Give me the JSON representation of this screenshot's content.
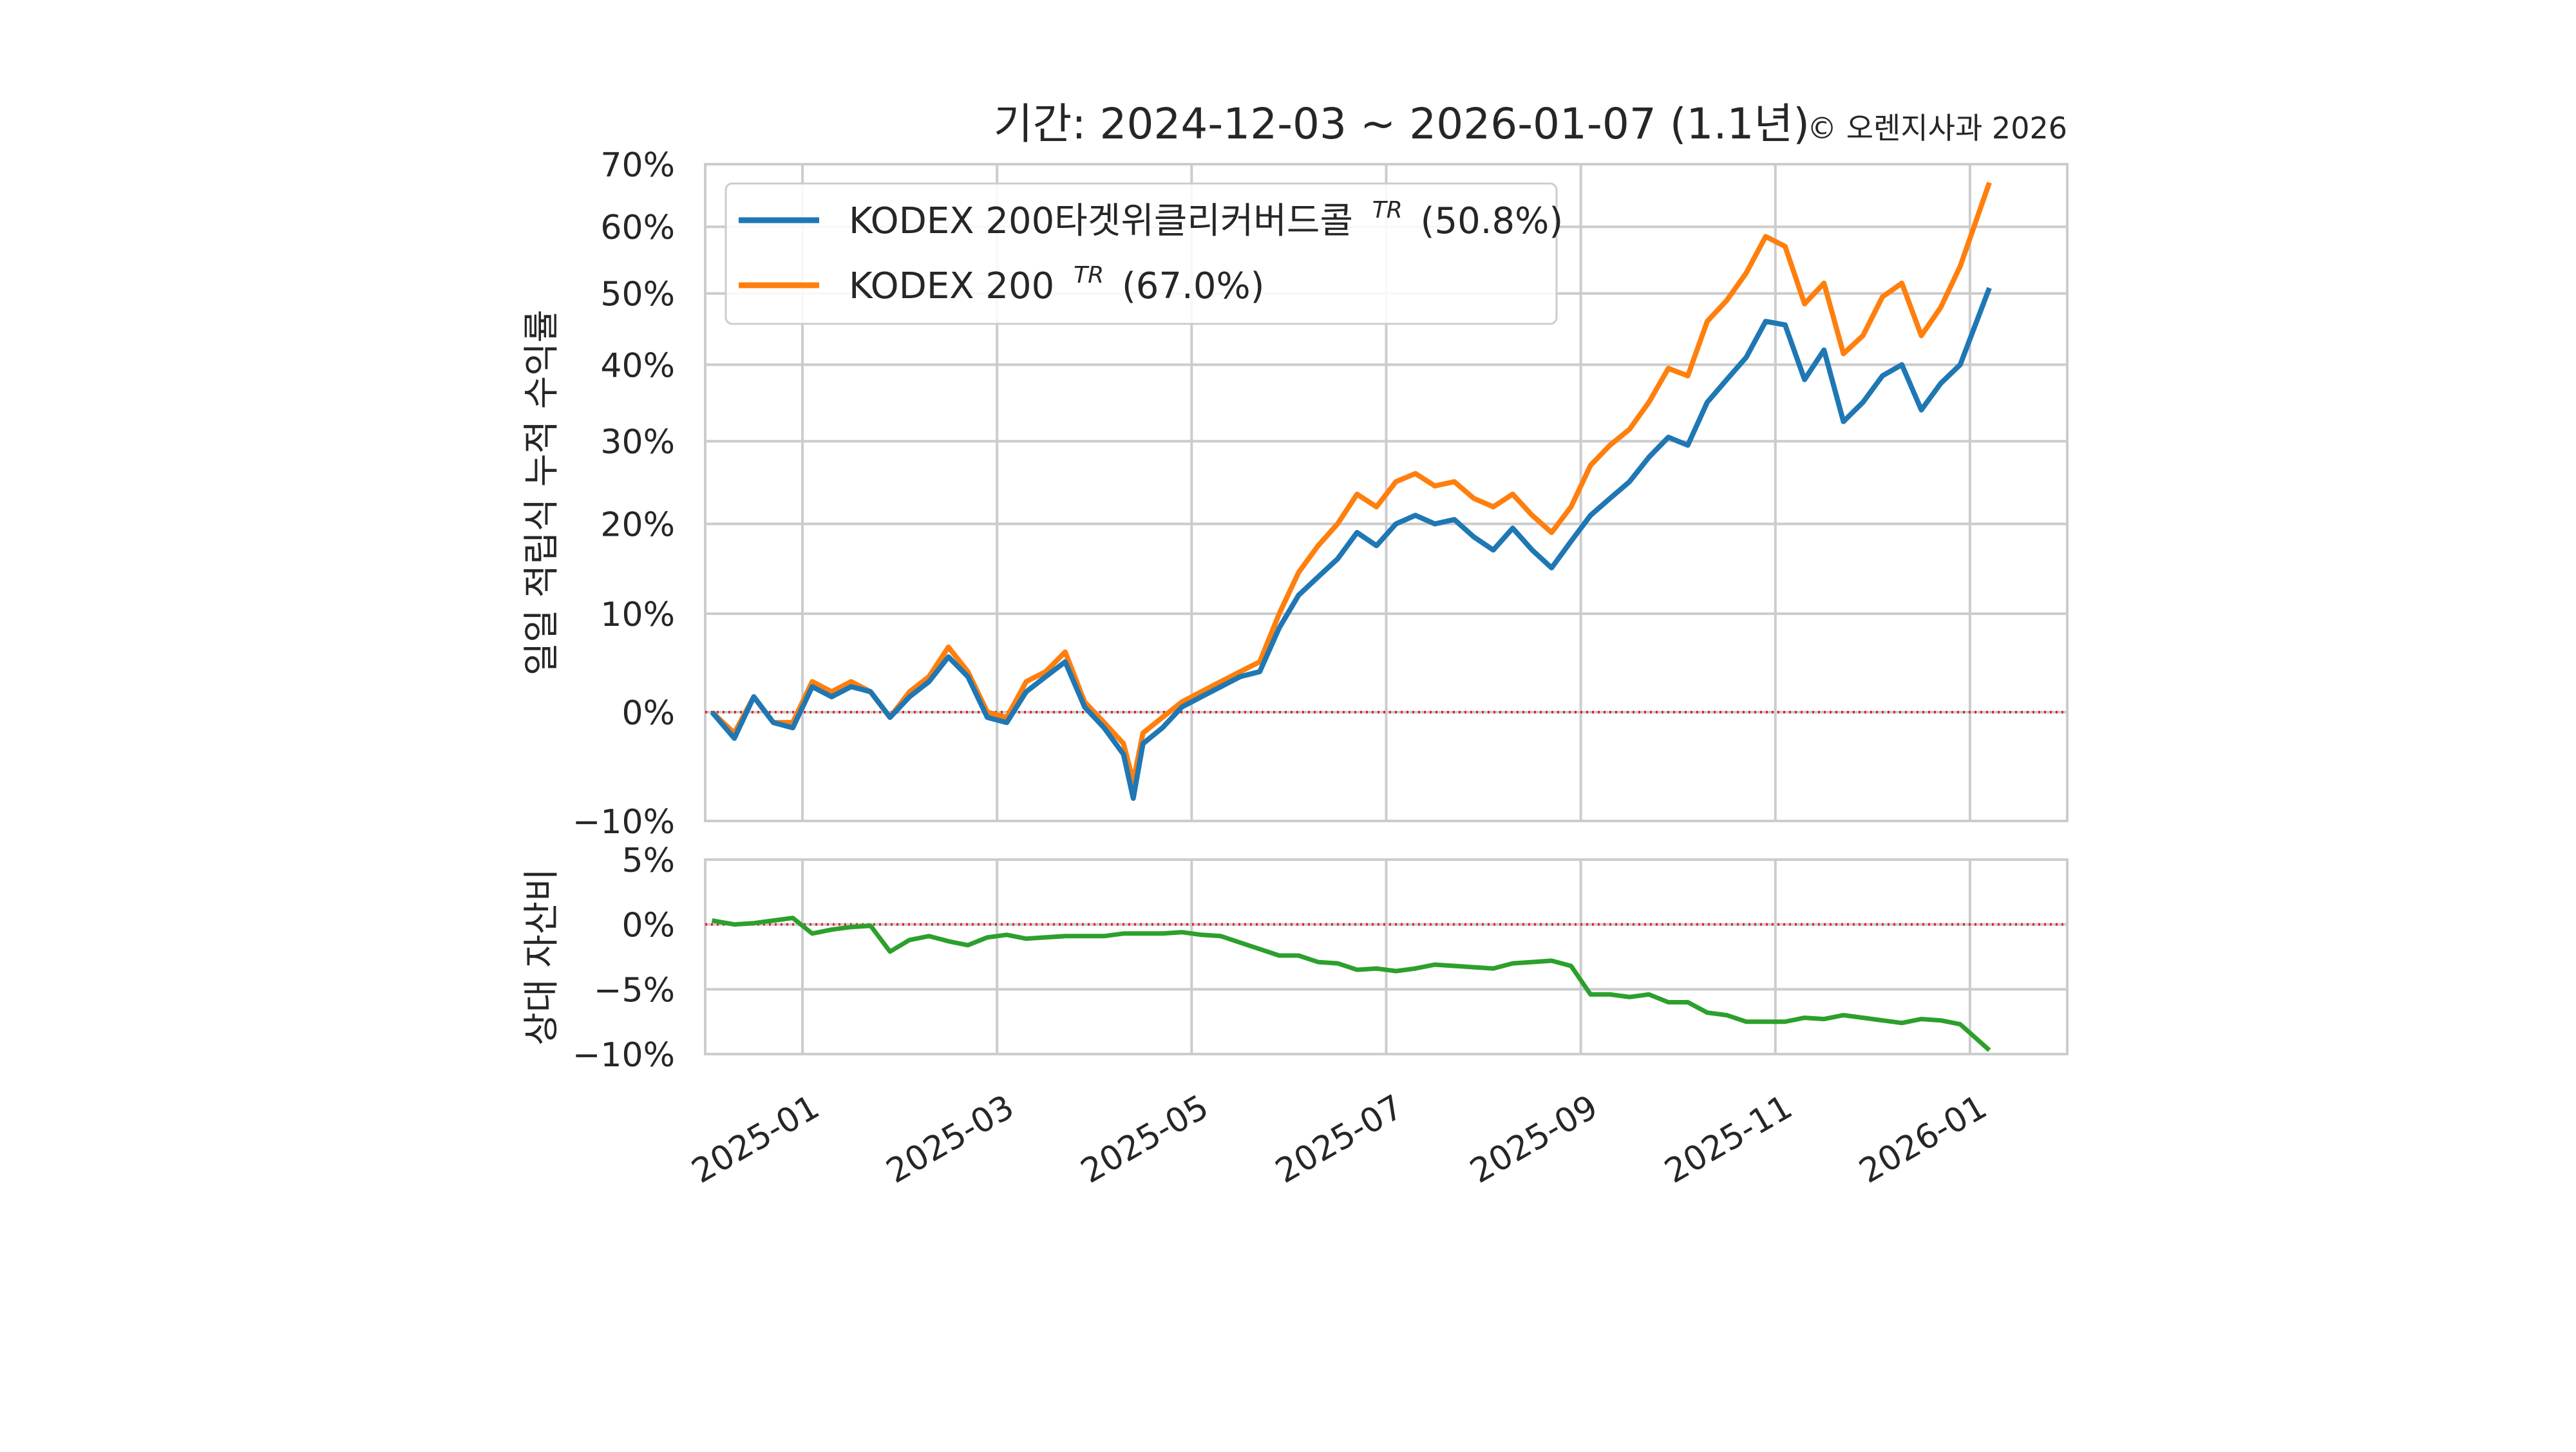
{
  "chart_data": [
    {
      "type": "line",
      "title": "기간: 2024-12-03 ~ 2026-01-07 (1.1년)",
      "credit": "© 오렌지사과 2026",
      "ylabel": "일일 적립식 누적 수익률",
      "xlabel": "",
      "yscale": "log(1+r)",
      "ylim": [
        -10,
        70
      ],
      "yticks": [
        "70%",
        "60%",
        "50%",
        "40%",
        "30%",
        "20%",
        "10%",
        "0%",
        "−10%"
      ],
      "ytick_values": [
        70,
        60,
        50,
        40,
        30,
        20,
        10,
        0,
        -10
      ],
      "xticks": [
        "2025-01",
        "2025-03",
        "2025-05",
        "2025-07",
        "2025-09",
        "2025-11",
        "2026-01"
      ],
      "xtick_months": [
        1,
        3,
        5,
        7,
        9,
        11,
        13
      ],
      "x_months": [
        0.07,
        0.3,
        0.5,
        0.7,
        0.9,
        1.1,
        1.3,
        1.5,
        1.7,
        1.9,
        2.1,
        2.3,
        2.5,
        2.7,
        2.9,
        3.1,
        3.3,
        3.5,
        3.7,
        3.9,
        4.1,
        4.3,
        4.4,
        4.5,
        4.7,
        4.9,
        5.1,
        5.3,
        5.5,
        5.7,
        5.9,
        6.1,
        6.3,
        6.5,
        6.7,
        6.9,
        7.1,
        7.3,
        7.5,
        7.7,
        7.9,
        8.1,
        8.3,
        8.5,
        8.7,
        8.9,
        9.1,
        9.3,
        9.5,
        9.7,
        9.9,
        10.1,
        10.3,
        10.5,
        10.7,
        10.9,
        11.1,
        11.3,
        11.5,
        11.7,
        11.9,
        12.1,
        12.3,
        12.5,
        12.7,
        12.9,
        13.2
      ],
      "series": [
        {
          "name": "KODEX 200타겟위클리커버드콜",
          "superscript": "TR",
          "final": "(50.8%)",
          "color": "#1f77b4",
          "values": [
            0.0,
            -2.5,
            1.5,
            -1.0,
            -1.5,
            2.5,
            1.5,
            2.5,
            2.0,
            -0.5,
            1.5,
            3.0,
            5.5,
            3.5,
            -0.5,
            -1.0,
            2.0,
            3.5,
            5.0,
            0.5,
            -1.5,
            -4.0,
            -8.0,
            -3.0,
            -1.5,
            0.5,
            1.5,
            2.5,
            3.5,
            4.0,
            8.5,
            12.0,
            14.0,
            16.0,
            19.0,
            17.5,
            20.0,
            21.0,
            20.0,
            20.5,
            18.5,
            17.0,
            19.5,
            17.0,
            15.0,
            18.0,
            21.0,
            23.0,
            25.0,
            28.0,
            30.5,
            29.5,
            35.0,
            38.0,
            41.0,
            46.0,
            45.5,
            38.0,
            42.0,
            32.5,
            35.0,
            38.5,
            40.0,
            34.0,
            37.5,
            40.0,
            50.8
          ]
        },
        {
          "name": "KODEX 200",
          "superscript": "TR",
          "final": "(67.0%)",
          "color": "#ff7f0e",
          "values": [
            0.0,
            -2.0,
            1.5,
            -1.0,
            -1.0,
            3.0,
            2.0,
            3.0,
            2.0,
            -0.5,
            2.0,
            3.5,
            6.5,
            4.0,
            0.0,
            -0.5,
            3.0,
            4.0,
            6.0,
            1.0,
            -1.0,
            -3.0,
            -6.5,
            -2.0,
            -0.5,
            1.0,
            2.0,
            3.0,
            4.0,
            5.0,
            10.0,
            14.5,
            17.5,
            20.0,
            23.5,
            22.0,
            25.0,
            26.0,
            24.5,
            25.0,
            23.0,
            22.0,
            23.5,
            21.0,
            19.0,
            22.0,
            27.0,
            29.5,
            31.5,
            35.0,
            39.5,
            38.5,
            46.0,
            49.0,
            53.0,
            58.5,
            57.0,
            48.5,
            51.5,
            41.5,
            44.0,
            49.5,
            51.5,
            44.0,
            48.0,
            54.0,
            67.0
          ]
        }
      ]
    },
    {
      "type": "line",
      "ylabel": "상대 자산비",
      "ylim": [
        -10,
        5
      ],
      "yticks": [
        "5%",
        "0%",
        "−5%",
        "−10%"
      ],
      "ytick_values": [
        5,
        0,
        -5,
        -10
      ],
      "series": [
        {
          "name": "상대 자산비",
          "color": "#2ca02c",
          "values": [
            0.3,
            0.0,
            0.1,
            0.3,
            0.5,
            -0.7,
            -0.4,
            -0.2,
            -0.1,
            -2.1,
            -1.2,
            -0.9,
            -1.3,
            -1.6,
            -1.0,
            -0.8,
            -1.1,
            -1.0,
            -0.9,
            -0.9,
            -0.9,
            -0.7,
            -0.7,
            -0.7,
            -0.7,
            -0.6,
            -0.8,
            -0.9,
            -1.4,
            -1.9,
            -2.4,
            -2.4,
            -2.9,
            -3.0,
            -3.5,
            -3.4,
            -3.6,
            -3.4,
            -3.1,
            -3.2,
            -3.3,
            -3.4,
            -3.0,
            -2.9,
            -2.8,
            -3.2,
            -5.4,
            -5.4,
            -5.6,
            -5.4,
            -6.0,
            -6.0,
            -6.8,
            -7.0,
            -7.5,
            -7.5,
            -7.5,
            -7.2,
            -7.3,
            -7.0,
            -7.2,
            -7.4,
            -7.6,
            -7.3,
            -7.4,
            -7.7,
            -9.7
          ]
        }
      ]
    }
  ]
}
